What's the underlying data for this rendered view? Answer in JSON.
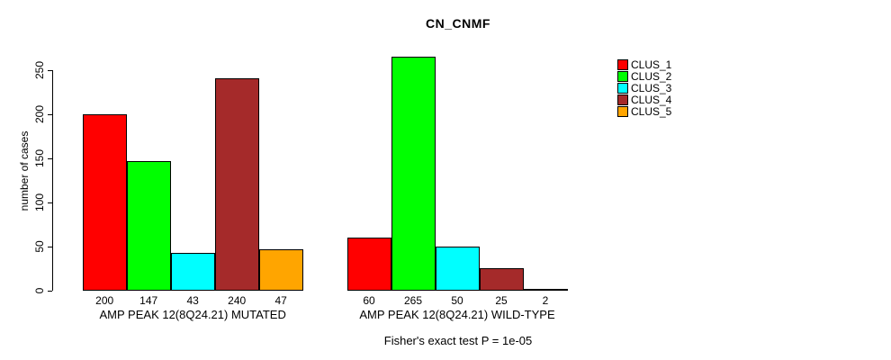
{
  "chart_data": {
    "type": "bar",
    "title": "CN_CNMF",
    "ylabel": "number of cases",
    "xlabel": "",
    "annotation": "Fisher's exact test P = 1e-05",
    "ylim": [
      0,
      250
    ],
    "y_ticks": [
      0,
      50,
      100,
      150,
      200,
      250
    ],
    "grid": false,
    "bar_value_labels_shown": true,
    "legend_position": "right",
    "series": [
      {
        "name": "CLUS_1",
        "color": "#FF0000",
        "values": [
          200,
          60
        ]
      },
      {
        "name": "CLUS_2",
        "color": "#00FF00",
        "values": [
          147,
          265
        ]
      },
      {
        "name": "CLUS_3",
        "color": "#00FFFF",
        "values": [
          43,
          50
        ]
      },
      {
        "name": "CLUS_4",
        "color": "#A52A2A",
        "values": [
          240,
          25
        ]
      },
      {
        "name": "CLUS_5",
        "color": "#FFA500",
        "values": [
          47,
          2
        ]
      }
    ],
    "groups": [
      {
        "label": "AMP PEAK 12(8Q24.21) MUTATED",
        "values": [
          200,
          147,
          43,
          240,
          47
        ]
      },
      {
        "label": "AMP PEAK 12(8Q24.21) WILD-TYPE",
        "values": [
          60,
          265,
          50,
          25,
          2
        ]
      }
    ]
  }
}
